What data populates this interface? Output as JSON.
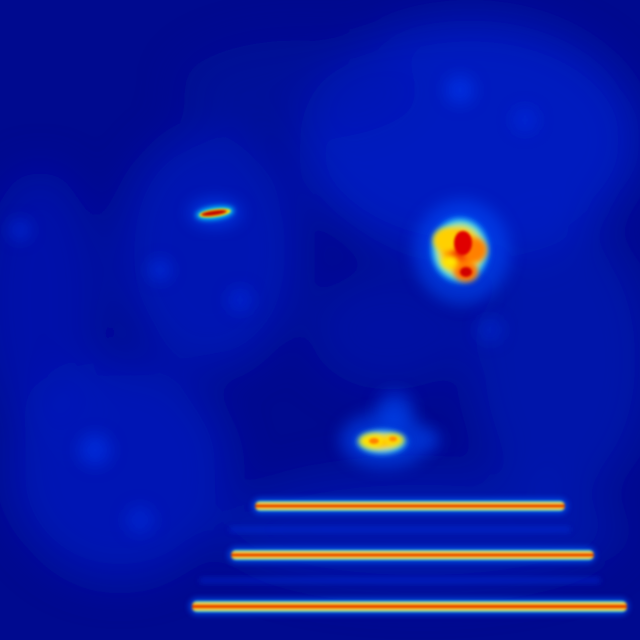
{
  "image": {
    "kind": "heatmap",
    "colormap": "jet",
    "colors": {
      "background": "#00088d",
      "low": "#0018ff",
      "mid": "#00d4ff",
      "high": "#ffe600",
      "peak": "#d00000"
    }
  }
}
